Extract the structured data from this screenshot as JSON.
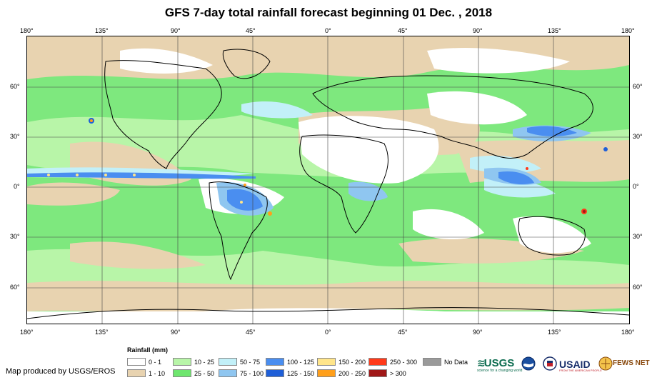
{
  "title": "GFS 7-day total rainfall forecast beginning 01 Dec. , 2018",
  "axes": {
    "lon_labels": [
      "180°",
      "135°",
      "90°",
      "45°",
      "0°",
      "45°",
      "90°",
      "135°",
      "180°"
    ],
    "lat_labels": [
      "60°",
      "30°",
      "0°",
      "30°",
      "60°"
    ]
  },
  "legend": {
    "title": "Rainfall (mm)",
    "items": [
      {
        "label": "0 - 1",
        "color": "#ffffff"
      },
      {
        "label": "1 - 10",
        "color": "#e8d3b0"
      },
      {
        "label": "10 - 25",
        "color": "#b8f5a8"
      },
      {
        "label": "25 - 50",
        "color": "#6ee66e"
      },
      {
        "label": "50 - 75",
        "color": "#c2f0f8"
      },
      {
        "label": "75 - 100",
        "color": "#8fc6f0"
      },
      {
        "label": "100 - 125",
        "color": "#4a8ef0"
      },
      {
        "label": "125 - 150",
        "color": "#1f5fd8"
      },
      {
        "label": "150 - 200",
        "color": "#ffe58a"
      },
      {
        "label": "200 - 250",
        "color": "#ff9f1a"
      },
      {
        "label": "250 - 300",
        "color": "#ff3a1a"
      },
      {
        "label": "> 300",
        "color": "#a01818"
      },
      {
        "label": "No Data",
        "color": "#9a9a9a"
      }
    ]
  },
  "credit": "Map produced by USGS/EROS",
  "logos": {
    "usgs": "USGS",
    "usgs_tagline": "science for a changing world",
    "usaid": "USAID",
    "usaid_tagline": "FROM THE AMERICAN PEOPLE",
    "fewsnet": "FEWS NET"
  }
}
